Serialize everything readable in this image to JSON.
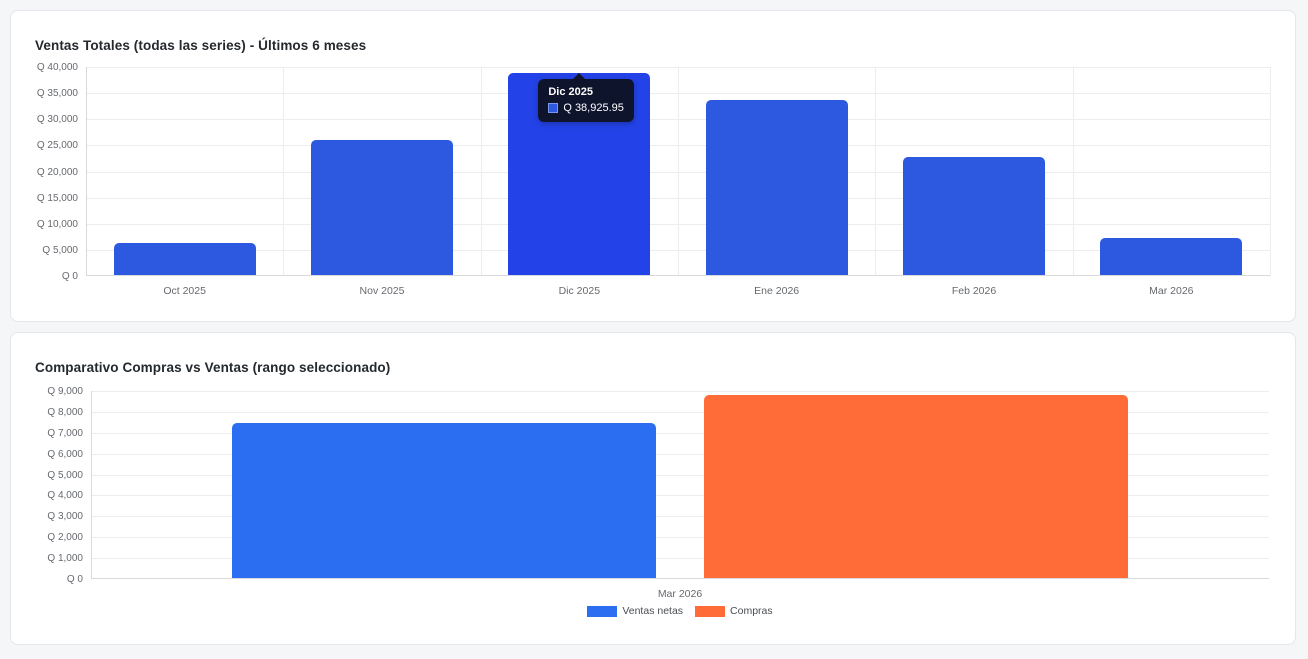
{
  "page": {
    "background_color": "#f5f6f8",
    "card_background": "#ffffff"
  },
  "chart_data": [
    {
      "type": "bar",
      "title": "Ventas Totales (todas las series) - Últimos 6 meses",
      "xlabel": "",
      "ylabel": "",
      "currency_prefix": "Q",
      "categories": [
        "Oct 2025",
        "Nov 2025",
        "Dic 2025",
        "Ene 2026",
        "Feb 2026",
        "Mar 2026"
      ],
      "series": [
        {
          "name": "",
          "color": "#2d59e0",
          "values": [
            6250,
            26000,
            38925.95,
            33650,
            22850,
            7300
          ]
        }
      ],
      "highlighted": {
        "category_index": 2,
        "color": "#2343e8"
      },
      "ylim": [
        0,
        40000
      ],
      "ytick_values": [
        0,
        5000,
        10000,
        15000,
        20000,
        25000,
        30000,
        35000,
        40000
      ],
      "ytick_labels": [
        "Q 0",
        "Q 5,000",
        "Q 10,000",
        "Q 15,000",
        "Q 20,000",
        "Q 25,000",
        "Q 30,000",
        "Q 35,000",
        "Q 40,000"
      ],
      "grid": true,
      "vertical_grid": true,
      "legend": null,
      "tooltip": {
        "category_index": 2,
        "title": "Dic 2025",
        "value": "Q 38,925.95",
        "swatch_fill": "#2d59e0",
        "swatch_border": "#7b97ef"
      }
    },
    {
      "type": "bar",
      "title": "Comparativo Compras vs Ventas (rango seleccionado)",
      "xlabel": "",
      "ylabel": "",
      "currency_prefix": "Q",
      "categories": [
        "Mar 2026"
      ],
      "series": [
        {
          "name": "Ventas netas",
          "color": "#2b6ef2",
          "values": [
            7450
          ]
        },
        {
          "name": "Compras",
          "color": "#ff6c38",
          "values": [
            8800
          ]
        }
      ],
      "highlighted": null,
      "ylim": [
        0,
        9000
      ],
      "ytick_values": [
        0,
        1000,
        2000,
        3000,
        4000,
        5000,
        6000,
        7000,
        8000,
        9000
      ],
      "ytick_labels": [
        "Q 0",
        "Q 1,000",
        "Q 2,000",
        "Q 3,000",
        "Q 4,000",
        "Q 5,000",
        "Q 6,000",
        "Q 7,000",
        "Q 8,000",
        "Q 9,000"
      ],
      "grid": true,
      "vertical_grid": false,
      "legend": {
        "position": "bottom"
      },
      "tooltip": null
    }
  ]
}
